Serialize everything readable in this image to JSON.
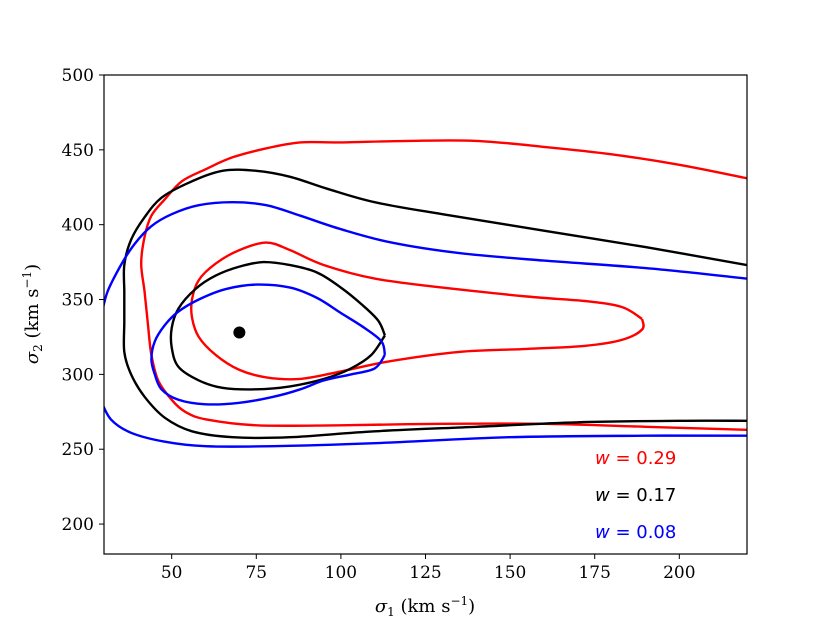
{
  "chart_data": {
    "type": "line",
    "title": "",
    "xlabel": {
      "main": "σ",
      "sub": "1",
      "unit_pre": " (km s",
      "sup": "−1",
      "unit_post": ")"
    },
    "ylabel": {
      "main": "σ",
      "sub": "2",
      "unit_pre": " (km s",
      "sup": "−1",
      "unit_post": ")"
    },
    "xlim": [
      30,
      220
    ],
    "ylim": [
      180,
      500
    ],
    "xticks": [
      "50",
      "75",
      "100",
      "125",
      "150",
      "175",
      "200"
    ],
    "yticks": [
      "200",
      "250",
      "300",
      "350",
      "400",
      "450",
      "500"
    ],
    "grid": false,
    "legend_placement": "bottom-right",
    "marker": {
      "x": 70,
      "y": 328,
      "color": "#000000"
    },
    "legend": [
      {
        "label": "w = 0.29",
        "color": "#ff0000"
      },
      {
        "label": "w = 0.17",
        "color": "#000000"
      },
      {
        "label": "w = 0.08",
        "color": "#0000ff"
      }
    ],
    "series": [
      {
        "color": "#ff0000",
        "contours": [
          [
            [
              220,
              431
            ],
            [
              200,
              440
            ],
            [
              180,
              447
            ],
            [
              160,
              452
            ],
            [
              140,
              456
            ],
            [
              120,
              456
            ],
            [
              100,
              455
            ],
            [
              88,
              455
            ],
            [
              78,
              451
            ],
            [
              68,
              445
            ],
            [
              60,
              437
            ],
            [
              53,
              429
            ],
            [
              48,
              417
            ],
            [
              44,
              406
            ],
            [
              42,
              392
            ],
            [
              41,
              374
            ],
            [
              42,
              355
            ],
            [
              43,
              333
            ],
            [
              44,
              313
            ],
            [
              46,
              296
            ],
            [
              50,
              283
            ],
            [
              54,
              275
            ],
            [
              60,
              270
            ],
            [
              75,
              266
            ],
            [
              100,
              266
            ],
            [
              130,
              267
            ],
            [
              160,
              267
            ],
            [
              190,
              265
            ],
            [
              220,
              263
            ]
          ],
          [
            [
              189,
              337
            ],
            [
              183,
              345
            ],
            [
              172,
              349
            ],
            [
              155,
              352
            ],
            [
              130,
              358
            ],
            [
              110,
              364
            ],
            [
              95,
              373
            ],
            [
              85,
              383
            ],
            [
              78,
              388
            ],
            [
              70,
              383
            ],
            [
              63,
              374
            ],
            [
              58,
              363
            ],
            [
              56,
              350
            ],
            [
              56,
              338
            ],
            [
              58,
              325
            ],
            [
              63,
              313
            ],
            [
              70,
              303
            ],
            [
              78,
              298
            ],
            [
              88,
              297
            ],
            [
              100,
              302
            ],
            [
              115,
              309
            ],
            [
              135,
              315
            ],
            [
              155,
              317
            ],
            [
              172,
              319
            ],
            [
              183,
              323
            ],
            [
              189,
              330
            ],
            [
              189,
              337
            ]
          ]
        ]
      },
      {
        "color": "#000000",
        "contours": [
          [
            [
              220,
              373
            ],
            [
              190,
              385
            ],
            [
              160,
              396
            ],
            [
              130,
              407
            ],
            [
              110,
              415
            ],
            [
              96,
              424
            ],
            [
              85,
              432
            ],
            [
              75,
              436
            ],
            [
              65,
              436
            ],
            [
              55,
              428
            ],
            [
              47,
              418
            ],
            [
              42,
              405
            ],
            [
              38,
              390
            ],
            [
              36,
              373
            ],
            [
              36,
              355
            ],
            [
              36,
              335
            ],
            [
              36,
              315
            ],
            [
              38,
              300
            ],
            [
              42,
              285
            ],
            [
              48,
              271
            ],
            [
              56,
              262
            ],
            [
              68,
              258
            ],
            [
              85,
              258
            ],
            [
              110,
              262
            ],
            [
              140,
              265
            ],
            [
              170,
              268
            ],
            [
              200,
              269
            ],
            [
              220,
              269
            ]
          ],
          [
            [
              113,
              326
            ],
            [
              109,
              313
            ],
            [
              103,
              304
            ],
            [
              95,
              297
            ],
            [
              85,
              292
            ],
            [
              75,
              290
            ],
            [
              65,
              291
            ],
            [
              58,
              296
            ],
            [
              52,
              305
            ],
            [
              50,
              318
            ],
            [
              50,
              331
            ],
            [
              52,
              344
            ],
            [
              57,
              357
            ],
            [
              63,
              366
            ],
            [
              70,
              372
            ],
            [
              77,
              375
            ],
            [
              85,
              373
            ],
            [
              93,
              368
            ],
            [
              100,
              358
            ],
            [
              106,
              347
            ],
            [
              111,
              336
            ],
            [
              113,
              326
            ]
          ]
        ]
      },
      {
        "color": "#0000ff",
        "contours": [
          [
            [
              220,
              364
            ],
            [
              190,
              371
            ],
            [
              160,
              376
            ],
            [
              135,
              381
            ],
            [
              115,
              388
            ],
            [
              100,
              397
            ],
            [
              88,
              406
            ],
            [
              78,
              413
            ],
            [
              68,
              415
            ],
            [
              58,
              413
            ],
            [
              50,
              407
            ],
            [
              44,
              399
            ],
            [
              39,
              387
            ],
            [
              35,
              373
            ],
            [
              31,
              355
            ],
            [
              29,
              337
            ]
          ],
          [
            [
              29,
              283
            ],
            [
              32,
              270
            ],
            [
              38,
              261
            ],
            [
              48,
              255
            ],
            [
              60,
              252
            ],
            [
              80,
              252
            ],
            [
              110,
              254
            ],
            [
              150,
              258
            ],
            [
              190,
              259
            ],
            [
              220,
              259
            ]
          ],
          [
            [
              113,
              313
            ],
            [
              110,
              304
            ],
            [
              103,
              300
            ],
            [
              95,
              296
            ],
            [
              88,
              290
            ],
            [
              80,
              285
            ],
            [
              70,
              281
            ],
            [
              60,
              280
            ],
            [
              52,
              283
            ],
            [
              47,
              290
            ],
            [
              45,
              300
            ],
            [
              44,
              310
            ],
            [
              45,
              322
            ],
            [
              48,
              333
            ],
            [
              52,
              342
            ],
            [
              58,
              350
            ],
            [
              66,
              357
            ],
            [
              75,
              360
            ],
            [
              85,
              358
            ],
            [
              93,
              351
            ],
            [
              100,
              341
            ],
            [
              107,
              331
            ],
            [
              112,
              322
            ],
            [
              113,
              313
            ]
          ]
        ]
      }
    ]
  }
}
